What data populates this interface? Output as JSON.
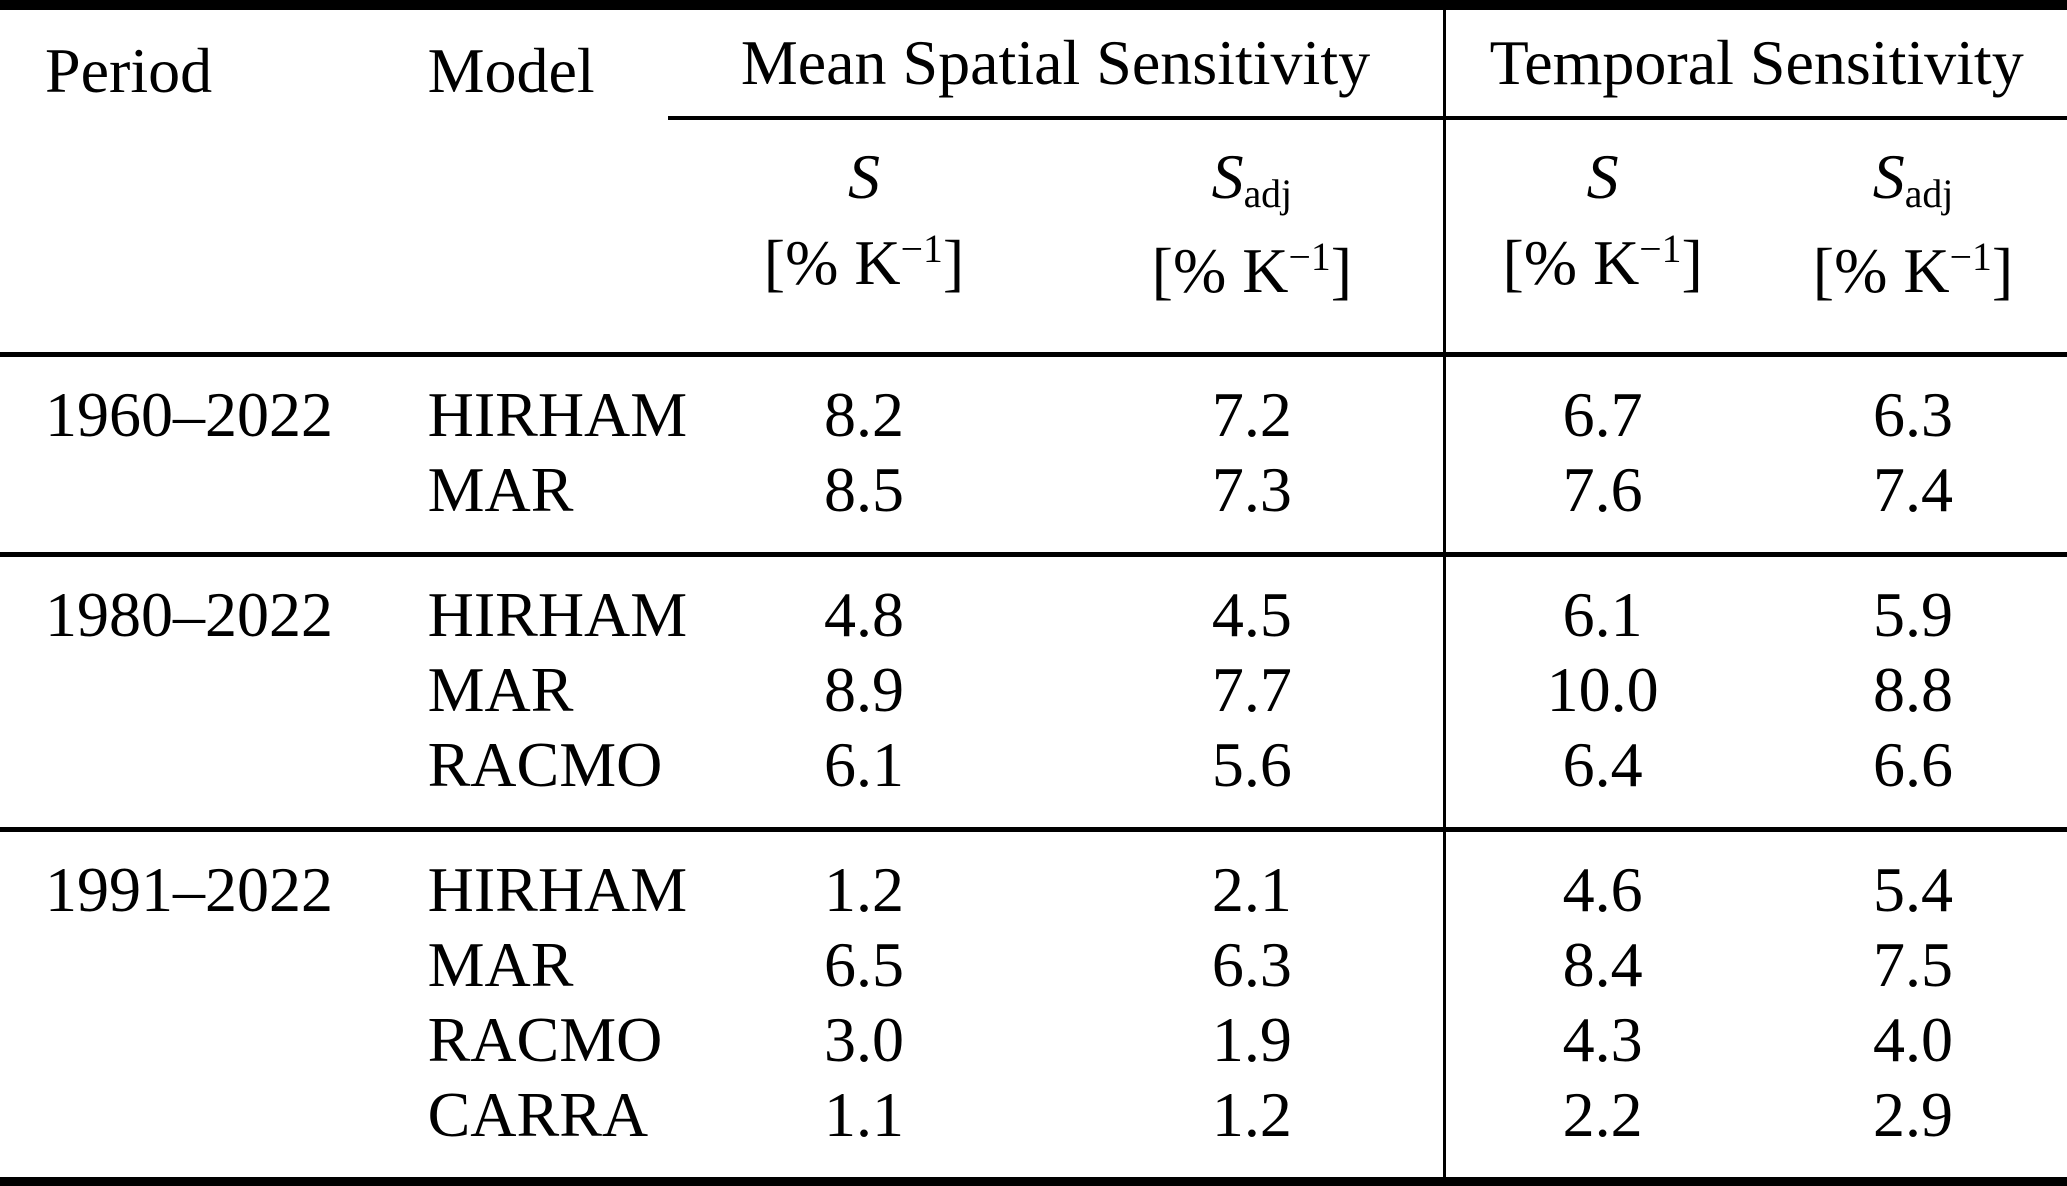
{
  "header": {
    "period": "Period",
    "model": "Model",
    "groups": {
      "spatial": "Mean Spatial Sensitivity",
      "temporal": "Temporal Sensitivity"
    },
    "sub": {
      "s": "S",
      "s_adj_base": "S",
      "s_adj_sub": "adj",
      "unit_prefix": "[% K",
      "unit_sup": "−1",
      "unit_suffix": "]"
    }
  },
  "rows": [
    {
      "period": "1960–2022",
      "model": "HIRHAM",
      "values": [
        "8.2",
        "7.2",
        "6.7",
        "6.3"
      ]
    },
    {
      "period": "",
      "model": "MAR",
      "values": [
        "8.5",
        "7.3",
        "7.6",
        "7.4"
      ]
    },
    {
      "period": "1980–2022",
      "model": "HIRHAM",
      "values": [
        "4.8",
        "4.5",
        "6.1",
        "5.9"
      ]
    },
    {
      "period": "",
      "model": "MAR",
      "values": [
        "8.9",
        "7.7",
        "10.0",
        "8.8"
      ]
    },
    {
      "period": "",
      "model": "RACMO",
      "values": [
        "6.1",
        "5.6",
        "6.4",
        "6.6"
      ]
    },
    {
      "period": "1991–2022",
      "model": "HIRHAM",
      "values": [
        "1.2",
        "2.1",
        "4.6",
        "5.4"
      ]
    },
    {
      "period": "",
      "model": "MAR",
      "values": [
        "6.5",
        "6.3",
        "8.4",
        "7.5"
      ]
    },
    {
      "period": "",
      "model": "RACMO",
      "values": [
        "3.0",
        "1.9",
        "4.3",
        "4.0"
      ]
    },
    {
      "period": "",
      "model": "CARRA",
      "values": [
        "1.1",
        "1.2",
        "2.2",
        "2.9"
      ]
    }
  ],
  "chart_data": {
    "type": "table",
    "column_groups": [
      "Mean Spatial Sensitivity",
      "Temporal Sensitivity"
    ],
    "columns": [
      "Period",
      "Model",
      "S [% K−1] (spatial)",
      "S adj [% K−1] (spatial)",
      "S [% K−1] (temporal)",
      "S adj [% K−1] (temporal)"
    ],
    "rows": [
      [
        "1960–2022",
        "HIRHAM",
        8.2,
        7.2,
        6.7,
        6.3
      ],
      [
        "1960–2022",
        "MAR",
        8.5,
        7.3,
        7.6,
        7.4
      ],
      [
        "1980–2022",
        "HIRHAM",
        4.8,
        4.5,
        6.1,
        5.9
      ],
      [
        "1980–2022",
        "MAR",
        8.9,
        7.7,
        10.0,
        8.8
      ],
      [
        "1980–2022",
        "RACMO",
        6.1,
        5.6,
        6.4,
        6.6
      ],
      [
        "1991–2022",
        "HIRHAM",
        1.2,
        2.1,
        4.6,
        5.4
      ],
      [
        "1991–2022",
        "MAR",
        6.5,
        6.3,
        8.4,
        7.5
      ],
      [
        "1991–2022",
        "RACMO",
        3.0,
        1.9,
        4.3,
        4.0
      ],
      [
        "1991–2022",
        "CARRA",
        1.1,
        1.2,
        2.2,
        2.9
      ]
    ]
  },
  "colors": {
    "text": "#000000",
    "rule": "#000000",
    "background": "#ffffff"
  }
}
